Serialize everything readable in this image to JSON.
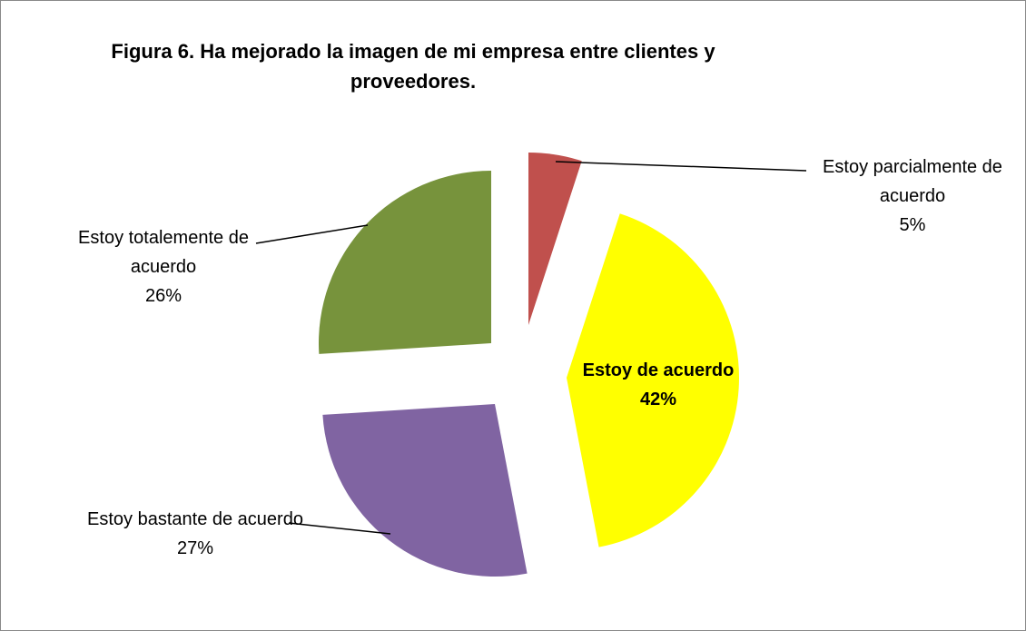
{
  "chart_data": {
    "type": "pie",
    "title": "Figura 6.  Ha mejorado la imagen de mi empresa entre clientes y proveedores.",
    "categories": [
      "Estoy parcialmente de acuerdo",
      "Estoy de acuerdo",
      "Estoy bastante de acuerdo",
      "Estoy totalemente de acuerdo"
    ],
    "values": [
      5,
      42,
      27,
      26
    ],
    "value_labels": [
      "5%",
      "42%",
      "27%",
      "26%"
    ],
    "colors": [
      "#c0504d",
      "#ffff00",
      "#8064a2",
      "#77933c"
    ]
  }
}
